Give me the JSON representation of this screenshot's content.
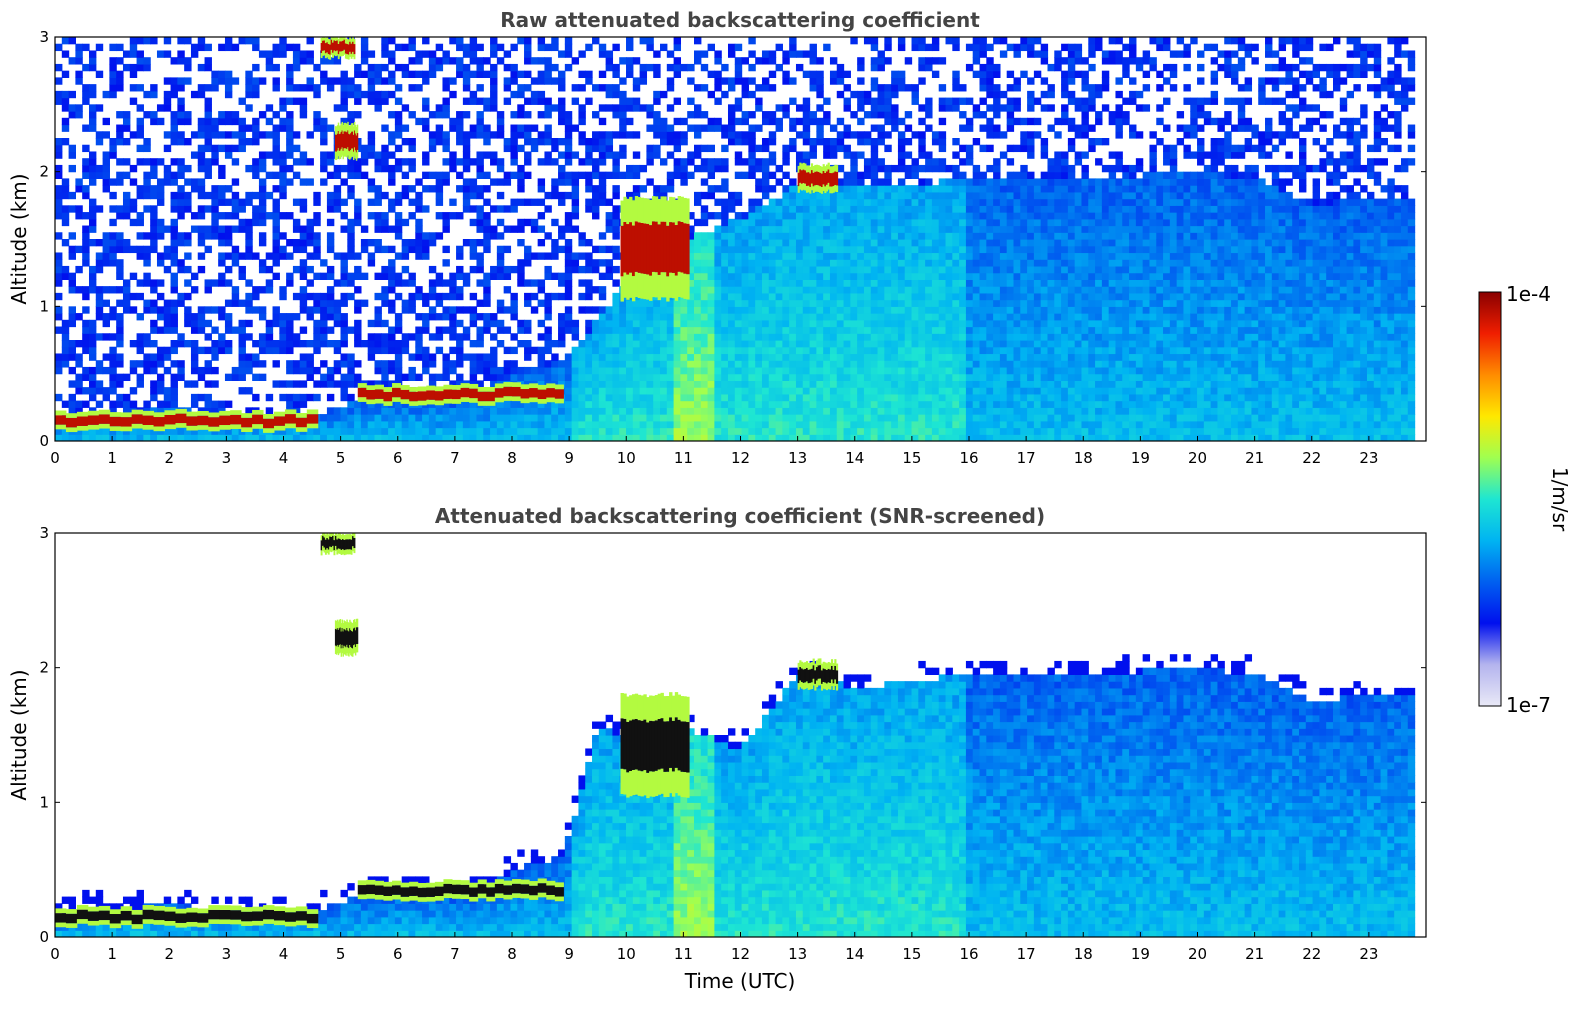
{
  "figure": {
    "colorbar": {
      "max_label": "1e-4",
      "min_label": "1e-7",
      "label": "1/m/sr",
      "scale": "log",
      "colormap": [
        "#e9e9f7",
        "#b4b4ee",
        "#0010ee",
        "#0060f0",
        "#00b4f2",
        "#1ee6d2",
        "#a0ff50",
        "#ffe800",
        "#ff8c00",
        "#f01e00",
        "#8a0000"
      ]
    }
  },
  "chart_data": [
    {
      "type": "heatmap",
      "title": "Raw attenuated backscattering coefficient",
      "xlabel": "",
      "ylabel": "Altitude (km)",
      "xlim": [
        0,
        24
      ],
      "ylim": [
        0,
        3
      ],
      "x_ticks": [
        "0",
        "1",
        "2",
        "3",
        "4",
        "5",
        "6",
        "7",
        "8",
        "9",
        "10",
        "11",
        "12",
        "13",
        "14",
        "15",
        "16",
        "17",
        "18",
        "19",
        "20",
        "21",
        "22",
        "23"
      ],
      "y_ticks": [
        "0",
        "1",
        "2",
        "3"
      ],
      "data_end_hour": 23.8,
      "noise": "high",
      "layers": {
        "boundary_layer_top_km": [
          [
            0,
            0.12
          ],
          [
            0.5,
            0.22
          ],
          [
            1,
            0.2
          ],
          [
            2,
            0.25
          ],
          [
            3,
            0.18
          ],
          [
            4,
            0.2
          ],
          [
            4.6,
            0.2
          ],
          [
            5.3,
            0.3
          ],
          [
            6,
            0.33
          ],
          [
            7,
            0.3
          ],
          [
            7.5,
            0.33
          ],
          [
            8,
            0.5
          ],
          [
            8.9,
            0.6
          ],
          [
            9.5,
            0.9
          ],
          [
            10,
            1.2
          ],
          [
            11,
            1.5
          ],
          [
            12,
            1.65
          ],
          [
            13,
            1.9
          ],
          [
            14,
            1.9
          ],
          [
            15,
            1.9
          ],
          [
            16,
            1.95
          ],
          [
            18,
            1.95
          ],
          [
            20,
            2.0
          ],
          [
            21,
            1.95
          ],
          [
            22,
            1.75
          ],
          [
            23,
            1.8
          ],
          [
            23.8,
            1.8
          ]
        ],
        "clouds": [
          {
            "x0": 0,
            "x1": 4.6,
            "y0": 0.08,
            "y1": 0.22
          },
          {
            "x0": 5.3,
            "x1": 8.9,
            "y0": 0.28,
            "y1": 0.42
          },
          {
            "x0": 4.65,
            "x1": 5.25,
            "y0": 2.85,
            "y1": 3.0
          },
          {
            "x0": 4.9,
            "x1": 5.3,
            "y0": 2.1,
            "y1": 2.35
          },
          {
            "x0": 9.9,
            "x1": 11.1,
            "y0": 1.05,
            "y1": 1.8
          },
          {
            "x0": 13.0,
            "x1": 13.7,
            "y0": 1.85,
            "y1": 2.05
          }
        ]
      }
    },
    {
      "type": "heatmap",
      "title": "Attenuated backscattering coefficient (SNR-screened)",
      "xlabel": "Time (UTC)",
      "ylabel": "Altitude (km)",
      "xlim": [
        0,
        24
      ],
      "ylim": [
        0,
        3
      ],
      "x_ticks": [
        "0",
        "1",
        "2",
        "3",
        "4",
        "5",
        "6",
        "7",
        "8",
        "9",
        "10",
        "11",
        "12",
        "13",
        "14",
        "15",
        "16",
        "17",
        "18",
        "19",
        "20",
        "21",
        "22",
        "23"
      ],
      "y_ticks": [
        "0",
        "1",
        "2",
        "3"
      ],
      "data_end_hour": 23.8,
      "noise": "screened",
      "layers": {
        "boundary_layer_top_km": [
          [
            0,
            0.12
          ],
          [
            0.5,
            0.22
          ],
          [
            1,
            0.2
          ],
          [
            2,
            0.25
          ],
          [
            3,
            0.18
          ],
          [
            4,
            0.2
          ],
          [
            4.6,
            0.2
          ],
          [
            5.3,
            0.3
          ],
          [
            6,
            0.33
          ],
          [
            7,
            0.3
          ],
          [
            7.5,
            0.33
          ],
          [
            8,
            0.5
          ],
          [
            8.9,
            0.6
          ],
          [
            9.5,
            1.55
          ],
          [
            10,
            1.5
          ],
          [
            11,
            1.55
          ],
          [
            12,
            1.4
          ],
          [
            13,
            1.95
          ],
          [
            14,
            1.85
          ],
          [
            15,
            1.9
          ],
          [
            16,
            1.95
          ],
          [
            18,
            1.95
          ],
          [
            20,
            2.0
          ],
          [
            21,
            1.95
          ],
          [
            22,
            1.75
          ],
          [
            23,
            1.8
          ],
          [
            23.8,
            1.8
          ]
        ],
        "clouds": [
          {
            "x0": 0,
            "x1": 4.6,
            "y0": 0.08,
            "y1": 0.22
          },
          {
            "x0": 5.3,
            "x1": 8.9,
            "y0": 0.28,
            "y1": 0.42
          },
          {
            "x0": 4.65,
            "x1": 5.25,
            "y0": 2.85,
            "y1": 3.0
          },
          {
            "x0": 4.9,
            "x1": 5.3,
            "y0": 2.1,
            "y1": 2.35
          },
          {
            "x0": 9.9,
            "x1": 11.1,
            "y0": 1.05,
            "y1": 1.8
          },
          {
            "x0": 13.0,
            "x1": 13.7,
            "y0": 1.85,
            "y1": 2.05
          }
        ]
      }
    }
  ]
}
